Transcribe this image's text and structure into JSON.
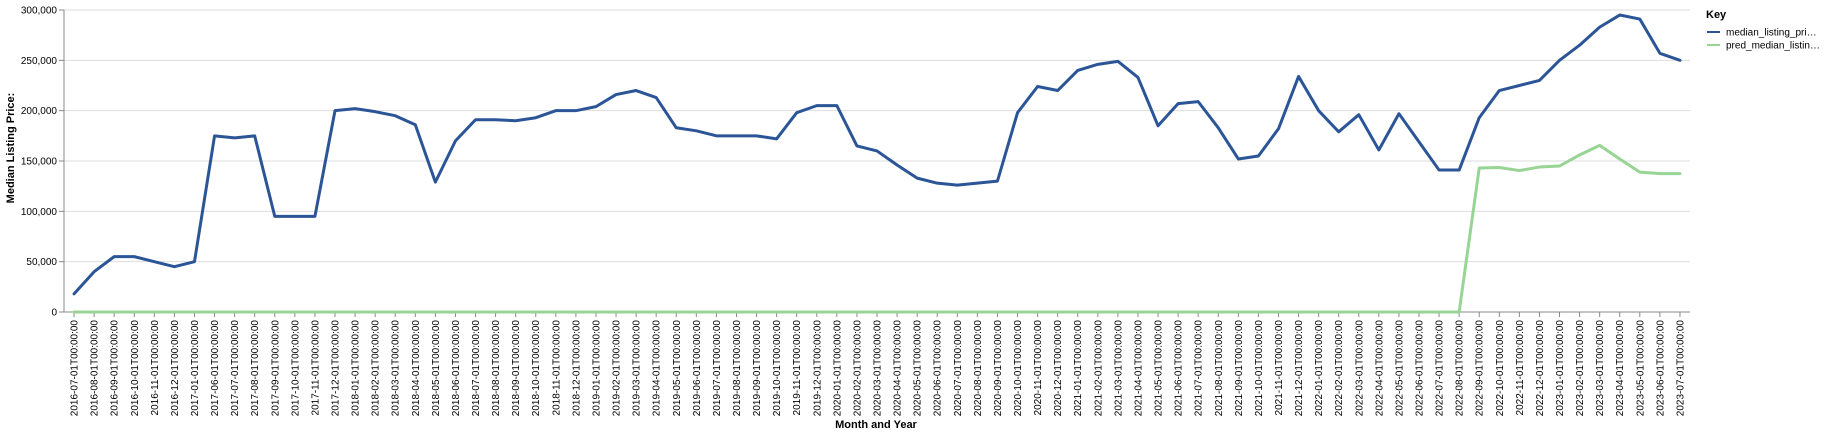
{
  "chart_data": {
    "type": "line",
    "xlabel": "Month and Year",
    "ylabel": "Median Listing Price:",
    "ylim": [
      0,
      300000
    ],
    "y_ticks": [
      0,
      50000,
      100000,
      150000,
      200000,
      250000,
      300000
    ],
    "y_tick_labels": [
      "0",
      "50,000",
      "100,000",
      "150,000",
      "200,000",
      "250,000",
      "300,000"
    ],
    "grid": true,
    "legend": {
      "title": "Key",
      "position": "top-right"
    },
    "x": [
      "2016-07-01T00:00:00",
      "2016-08-01T00:00:00",
      "2016-09-01T00:00:00",
      "2016-10-01T00:00:00",
      "2016-11-01T00:00:00",
      "2016-12-01T00:00:00",
      "2017-01-01T00:00:00",
      "2017-06-01T00:00:00",
      "2017-07-01T00:00:00",
      "2017-08-01T00:00:00",
      "2017-09-01T00:00:00",
      "2017-10-01T00:00:00",
      "2017-11-01T00:00:00",
      "2017-12-01T00:00:00",
      "2018-01-01T00:00:00",
      "2018-02-01T00:00:00",
      "2018-03-01T00:00:00",
      "2018-04-01T00:00:00",
      "2018-05-01T00:00:00",
      "2018-06-01T00:00:00",
      "2018-07-01T00:00:00",
      "2018-08-01T00:00:00",
      "2018-09-01T00:00:00",
      "2018-10-01T00:00:00",
      "2018-11-01T00:00:00",
      "2018-12-01T00:00:00",
      "2019-01-01T00:00:00",
      "2019-02-01T00:00:00",
      "2019-03-01T00:00:00",
      "2019-04-01T00:00:00",
      "2019-05-01T00:00:00",
      "2019-06-01T00:00:00",
      "2019-07-01T00:00:00",
      "2019-08-01T00:00:00",
      "2019-09-01T00:00:00",
      "2019-10-01T00:00:00",
      "2019-11-01T00:00:00",
      "2019-12-01T00:00:00",
      "2020-01-01T00:00:00",
      "2020-02-01T00:00:00",
      "2020-03-01T00:00:00",
      "2020-04-01T00:00:00",
      "2020-05-01T00:00:00",
      "2020-06-01T00:00:00",
      "2020-07-01T00:00:00",
      "2020-08-01T00:00:00",
      "2020-09-01T00:00:00",
      "2020-10-01T00:00:00",
      "2020-11-01T00:00:00",
      "2020-12-01T00:00:00",
      "2021-01-01T00:00:00",
      "2021-02-01T00:00:00",
      "2021-03-01T00:00:00",
      "2021-04-01T00:00:00",
      "2021-05-01T00:00:00",
      "2021-06-01T00:00:00",
      "2021-07-01T00:00:00",
      "2021-08-01T00:00:00",
      "2021-09-01T00:00:00",
      "2021-10-01T00:00:00",
      "2021-11-01T00:00:00",
      "2021-12-01T00:00:00",
      "2022-01-01T00:00:00",
      "2022-02-01T00:00:00",
      "2022-03-01T00:00:00",
      "2022-04-01T00:00:00",
      "2022-05-01T00:00:00",
      "2022-06-01T00:00:00",
      "2022-07-01T00:00:00",
      "2022-08-01T00:00:00",
      "2022-09-01T00:00:00",
      "2022-10-01T00:00:00",
      "2022-11-01T00:00:00",
      "2022-12-01T00:00:00",
      "2023-01-01T00:00:00",
      "2023-02-01T00:00:00",
      "2023-03-01T00:00:00",
      "2023-04-01T00:00:00",
      "2023-05-01T00:00:00",
      "2023-06-01T00:00:00",
      "2023-07-01T00:00:00"
    ],
    "series": [
      {
        "name": "median_listing_pri…",
        "color": "#2b5597",
        "values": [
          18000,
          40000,
          55000,
          55000,
          50000,
          45000,
          50000,
          175000,
          173000,
          175000,
          95000,
          95000,
          95000,
          200000,
          202000,
          199000,
          195000,
          186000,
          129000,
          170000,
          191000,
          191000,
          190000,
          193000,
          200000,
          200000,
          204000,
          216000,
          220000,
          213000,
          183000,
          180000,
          175000,
          175000,
          175000,
          172000,
          198000,
          205000,
          205000,
          165000,
          160000,
          146000,
          133000,
          128000,
          126000,
          128000,
          130000,
          198000,
          224000,
          220000,
          240000,
          246000,
          249000,
          233000,
          185000,
          207000,
          209000,
          183000,
          152000,
          155000,
          182000,
          234000,
          200000,
          179000,
          196000,
          161000,
          197000,
          169000,
          141000,
          141000,
          193000,
          220000,
          225000,
          230000,
          250000,
          265000,
          283000,
          295000,
          291000,
          257000,
          250000
        ]
      },
      {
        "name": "pred_median_listin…",
        "color": "#98d594",
        "values": [
          0,
          0,
          0,
          0,
          0,
          0,
          0,
          0,
          0,
          0,
          0,
          0,
          0,
          0,
          0,
          0,
          0,
          0,
          0,
          0,
          0,
          0,
          0,
          0,
          0,
          0,
          0,
          0,
          0,
          0,
          0,
          0,
          0,
          0,
          0,
          0,
          0,
          0,
          0,
          0,
          0,
          0,
          0,
          0,
          0,
          0,
          0,
          0,
          0,
          0,
          0,
          0,
          0,
          0,
          0,
          0,
          0,
          0,
          0,
          0,
          0,
          0,
          0,
          0,
          0,
          0,
          0,
          0,
          0,
          0,
          143000,
          143500,
          140500,
          144000,
          145000,
          156000,
          165500,
          152000,
          139000,
          137500,
          137500
        ]
      }
    ]
  }
}
